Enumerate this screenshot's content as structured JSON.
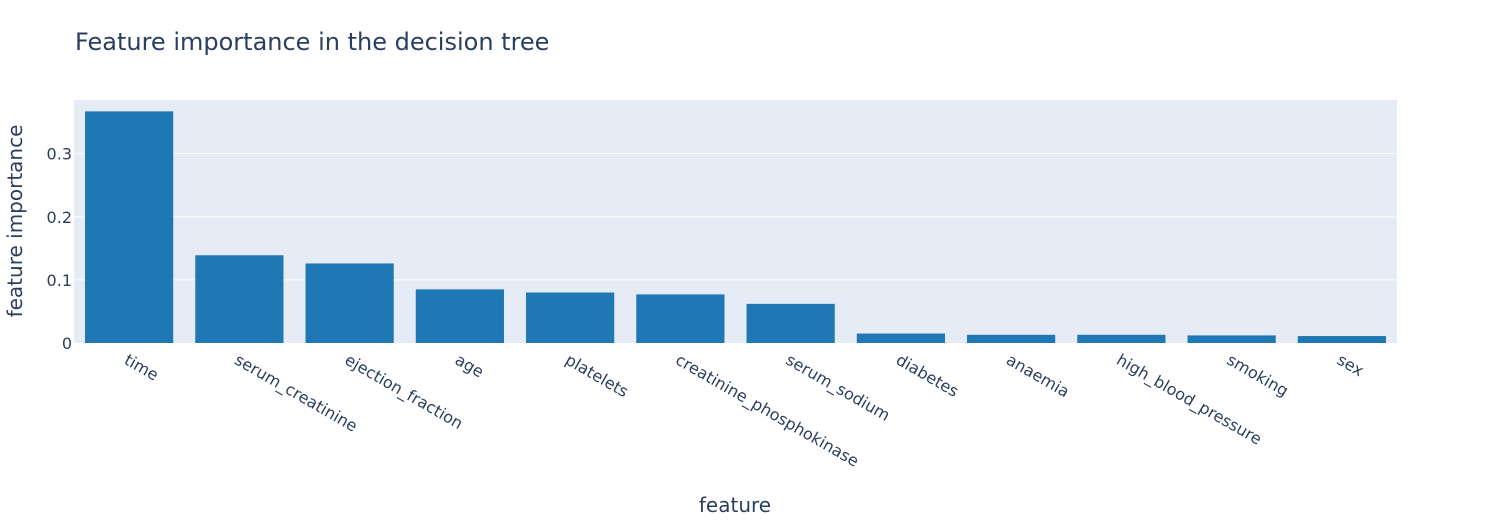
{
  "chart_data": {
    "type": "bar",
    "title": "Feature importance in the decision tree",
    "xlabel": "feature",
    "ylabel": "feature importance",
    "categories": [
      "time",
      "serum_creatinine",
      "ejection_fraction",
      "age",
      "platelets",
      "creatinine_phosphokinase",
      "serum_sodium",
      "diabetes",
      "anaemia",
      "high_blood_pressure",
      "smoking",
      "sex"
    ],
    "values": [
      0.367,
      0.139,
      0.126,
      0.085,
      0.08,
      0.077,
      0.062,
      0.015,
      0.013,
      0.013,
      0.012,
      0.011
    ],
    "ylim": [
      0,
      0.385
    ],
    "yticks": [
      0,
      0.1,
      0.2,
      0.3
    ],
    "ytick_labels": [
      "0",
      "0.1",
      "0.2",
      "0.3"
    ],
    "grid": true,
    "legend": "none",
    "colors": {
      "bar": "#1f77b4",
      "plot_bg": "#e5ecf6",
      "grid": "#ffffff",
      "text": "#2a3f5f"
    }
  }
}
